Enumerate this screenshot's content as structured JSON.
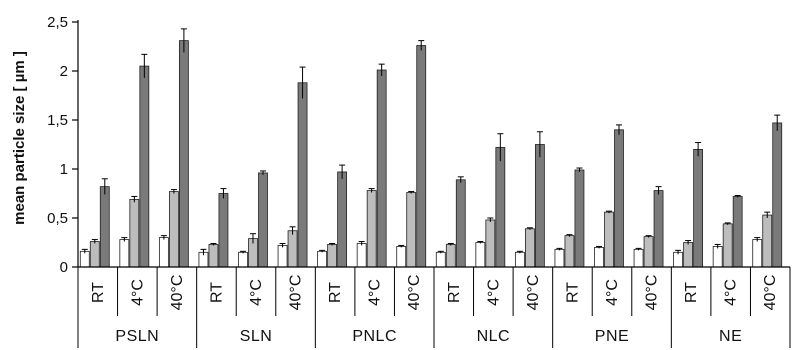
{
  "chart_data": {
    "type": "bar",
    "title": "",
    "ylabel": "mean particle size [ µm ]",
    "ylim": [
      0,
      2.5
    ],
    "yticks": [
      0,
      0.5,
      1,
      1.5,
      2,
      2.5
    ],
    "ytick_labels": [
      "0",
      "0,5",
      "1",
      "1,5",
      "2",
      "2,5"
    ],
    "groups": [
      "PSLN",
      "SLN",
      "PNLC",
      "NLC",
      "PNE",
      "NE"
    ],
    "conditions": [
      "RT",
      "4°C",
      "40°C"
    ],
    "series_colors": [
      "#ffffff",
      "#bdbdbd",
      "#7a7a7a"
    ],
    "bars": [
      {
        "group": "PSLN",
        "condition": "RT",
        "values": [
          0.16,
          0.26,
          0.82
        ],
        "errors": [
          0.02,
          0.02,
          0.08
        ]
      },
      {
        "group": "PSLN",
        "condition": "4°C",
        "values": [
          0.28,
          0.69,
          2.05
        ],
        "errors": [
          0.02,
          0.03,
          0.12
        ]
      },
      {
        "group": "PSLN",
        "condition": "40°C",
        "values": [
          0.3,
          0.77,
          2.31
        ],
        "errors": [
          0.02,
          0.02,
          0.12
        ]
      },
      {
        "group": "SLN",
        "condition": "RT",
        "values": [
          0.15,
          0.23,
          0.75
        ],
        "errors": [
          0.03,
          0.01,
          0.05
        ]
      },
      {
        "group": "SLN",
        "condition": "4°C",
        "values": [
          0.15,
          0.29,
          0.96
        ],
        "errors": [
          0.01,
          0.05,
          0.02
        ]
      },
      {
        "group": "SLN",
        "condition": "40°C",
        "values": [
          0.22,
          0.37,
          1.88
        ],
        "errors": [
          0.02,
          0.04,
          0.16
        ]
      },
      {
        "group": "PNLC",
        "condition": "RT",
        "values": [
          0.16,
          0.23,
          0.97
        ],
        "errors": [
          0.01,
          0.01,
          0.07
        ]
      },
      {
        "group": "PNLC",
        "condition": "4°C",
        "values": [
          0.24,
          0.78,
          2.01
        ],
        "errors": [
          0.02,
          0.02,
          0.06
        ]
      },
      {
        "group": "PNLC",
        "condition": "40°C",
        "values": [
          0.21,
          0.76,
          2.26
        ],
        "errors": [
          0.01,
          0.01,
          0.05
        ]
      },
      {
        "group": "NLC",
        "condition": "RT",
        "values": [
          0.15,
          0.23,
          0.89
        ],
        "errors": [
          0.01,
          0.01,
          0.03
        ]
      },
      {
        "group": "NLC",
        "condition": "4°C",
        "values": [
          0.25,
          0.48,
          1.22
        ],
        "errors": [
          0.01,
          0.02,
          0.14
        ]
      },
      {
        "group": "NLC",
        "condition": "40°C",
        "values": [
          0.15,
          0.39,
          1.25
        ],
        "errors": [
          0.01,
          0.01,
          0.13
        ]
      },
      {
        "group": "PNE",
        "condition": "RT",
        "values": [
          0.18,
          0.32,
          0.99
        ],
        "errors": [
          0.01,
          0.01,
          0.02
        ]
      },
      {
        "group": "PNE",
        "condition": "4°C",
        "values": [
          0.2,
          0.56,
          1.4
        ],
        "errors": [
          0.01,
          0.01,
          0.05
        ]
      },
      {
        "group": "PNE",
        "condition": "40°C",
        "values": [
          0.18,
          0.31,
          0.78
        ],
        "errors": [
          0.01,
          0.01,
          0.04
        ]
      },
      {
        "group": "NE",
        "condition": "RT",
        "values": [
          0.15,
          0.25,
          1.2
        ],
        "errors": [
          0.02,
          0.02,
          0.07
        ]
      },
      {
        "group": "NE",
        "condition": "4°C",
        "values": [
          0.21,
          0.44,
          0.72
        ],
        "errors": [
          0.02,
          0.01,
          0.01
        ]
      },
      {
        "group": "NE",
        "condition": "40°C",
        "values": [
          0.28,
          0.53,
          1.47
        ],
        "errors": [
          0.02,
          0.03,
          0.08
        ]
      }
    ],
    "grid": false,
    "legend": "none"
  }
}
